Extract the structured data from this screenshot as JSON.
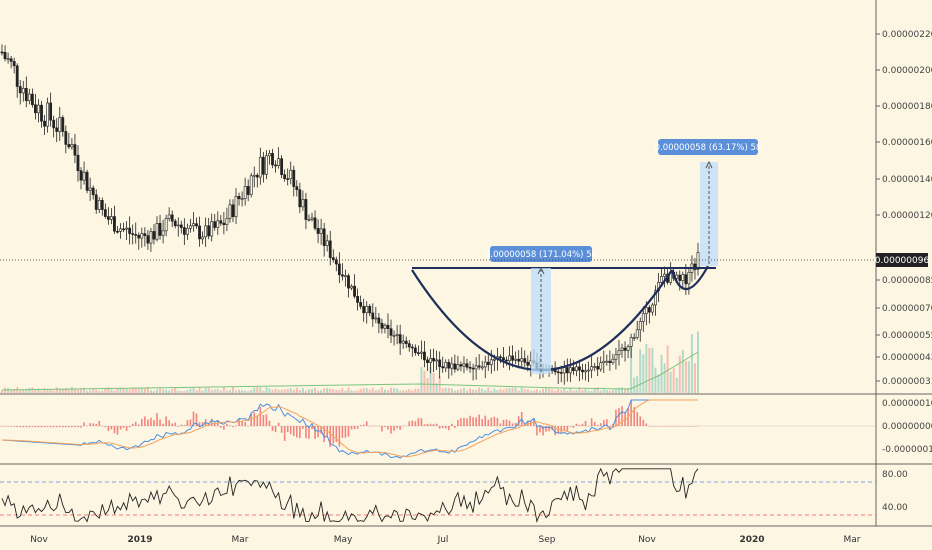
{
  "colors": {
    "background": "#fdf6e3",
    "bull": "#26a69a",
    "bear": "#ef5350",
    "candle": "#222222",
    "pattern_line": "#1e2f5b",
    "measure_fill": "#bbdefb",
    "measure_label_bg": "#5b8fd9",
    "macd_line": "#4a90e2",
    "signal_line": "#f5a25d",
    "rsi_line": "#222222",
    "rsi_upper": "#5b8fd9",
    "rsi_lower": "#ef5350",
    "volume_ma": "#7bc47f"
  },
  "price_axis": {
    "ticks": [
      "0.00000220",
      "0.00000200",
      "0.00000180",
      "0.00000160",
      "0.00000140",
      "0.00000120",
      "0.00000100",
      "0.00000085",
      "0.00000070",
      "0.00000055",
      "0.00000043",
      "0.00000031"
    ],
    "current_price": "0.00000096"
  },
  "macd_axis": {
    "ticks": [
      "0.00000010",
      "0.00000000",
      "-0.00000010"
    ]
  },
  "rsi_axis": {
    "ticks": [
      "80.00",
      "40.00"
    ]
  },
  "x_axis": {
    "labels": [
      "Nov",
      "2019",
      "Mar",
      "May",
      "Jul",
      "Sep",
      "Nov",
      "2020",
      "Mar"
    ]
  },
  "measurements": [
    {
      "label": "0.00000058 (171.04%) 58"
    },
    {
      "label": "0.00000058 (63.17%) 58"
    }
  ],
  "chart_data": {
    "type": "candlestick",
    "indicators": [
      "Volume",
      "MACD",
      "RSI"
    ],
    "price_ticks": [
      2.2e-06,
      2e-06,
      1.8e-06,
      1.6e-06,
      1.4e-06,
      1.2e-06,
      1e-06,
      8.5e-07,
      7e-07,
      5.5e-07,
      4.3e-07,
      3.1e-07
    ],
    "last_price": 9.6e-07,
    "close_series": [
      2.1e-06,
      1.95e-06,
      1.8e-06,
      1.72e-06,
      1.6e-06,
      1.38e-06,
      1.2e-06,
      1.13e-06,
      1.08e-06,
      1.1e-06,
      1.17e-06,
      1.12e-06,
      1.1e-06,
      1.15e-06,
      1.3e-06,
      1.45e-06,
      1.55e-06,
      1.4e-06,
      1.2e-06,
      1.05e-06,
      9e-07,
      7.4e-07,
      6.2e-07,
      5.5e-07,
      5e-07,
      4.2e-07,
      3.9e-07,
      3.8e-07,
      3.9e-07,
      4.1e-07,
      4.3e-07,
      4e-07,
      3.7e-07,
      3.6e-07,
      3.7e-07,
      3.8e-07,
      4.1e-07,
      5.2e-07,
      6.8e-07,
      8.8e-07,
      8.3e-07,
      9.6e-07
    ],
    "resistance": 9.2e-07,
    "measure_moves": [
      "0.00000058 (171.04%) 58",
      "0.00000058 (63.17%) 58"
    ],
    "rsi_levels": [
      70,
      30
    ],
    "rsi_last": 60
  }
}
